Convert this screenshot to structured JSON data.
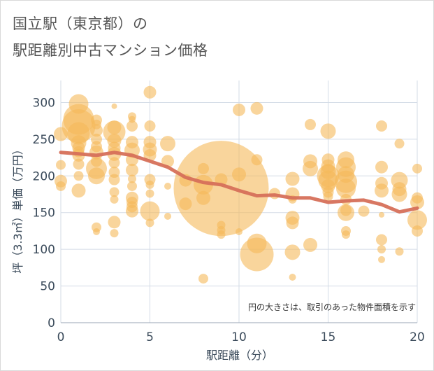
{
  "title_line1": "国立駅（東京都）の",
  "title_line2": "駅距離別中古マンション価格",
  "note": "円の大きさは、取引のあった物件面積を示す",
  "colors": {
    "bubble": "#f5b95a",
    "trend": "#d6705a",
    "grid": "#d3dbe6",
    "text": "#3a4a5a"
  },
  "chart_data": {
    "type": "scatter",
    "xlabel": "駅距離（分）",
    "ylabel": "坪（3.3㎡）単価（万円）",
    "xlim": [
      0,
      20
    ],
    "ylim": [
      0,
      330
    ],
    "xticks": [
      0,
      5,
      10,
      15,
      20
    ],
    "yticks": [
      0,
      50,
      100,
      150,
      200,
      250,
      300
    ],
    "grid": true,
    "points": [
      {
        "x": 0,
        "y": 257,
        "size": 10
      },
      {
        "x": 0,
        "y": 215,
        "size": 7
      },
      {
        "x": 0,
        "y": 193,
        "size": 9
      },
      {
        "x": 0,
        "y": 186,
        "size": 7
      },
      {
        "x": 1,
        "y": 298,
        "size": 14
      },
      {
        "x": 1,
        "y": 277,
        "size": 22
      },
      {
        "x": 1,
        "y": 268,
        "size": 24
      },
      {
        "x": 1,
        "y": 258,
        "size": 16
      },
      {
        "x": 1,
        "y": 245,
        "size": 11
      },
      {
        "x": 1,
        "y": 238,
        "size": 9
      },
      {
        "x": 1,
        "y": 233,
        "size": 8
      },
      {
        "x": 1,
        "y": 228,
        "size": 9
      },
      {
        "x": 1,
        "y": 216,
        "size": 8
      },
      {
        "x": 1,
        "y": 200,
        "size": 7
      },
      {
        "x": 1,
        "y": 180,
        "size": 10
      },
      {
        "x": 2,
        "y": 276,
        "size": 8
      },
      {
        "x": 2,
        "y": 270,
        "size": 7
      },
      {
        "x": 2,
        "y": 262,
        "size": 9
      },
      {
        "x": 2,
        "y": 250,
        "size": 8
      },
      {
        "x": 2,
        "y": 240,
        "size": 8
      },
      {
        "x": 2,
        "y": 232,
        "size": 10
      },
      {
        "x": 2,
        "y": 220,
        "size": 8
      },
      {
        "x": 2,
        "y": 210,
        "size": 15
      },
      {
        "x": 2,
        "y": 200,
        "size": 12
      },
      {
        "x": 2,
        "y": 130,
        "size": 7
      },
      {
        "x": 2,
        "y": 124,
        "size": 5
      },
      {
        "x": 3,
        "y": 295,
        "size": 4
      },
      {
        "x": 3,
        "y": 266,
        "size": 10
      },
      {
        "x": 3,
        "y": 260,
        "size": 16
      },
      {
        "x": 3,
        "y": 248,
        "size": 10
      },
      {
        "x": 3,
        "y": 238,
        "size": 9
      },
      {
        "x": 3,
        "y": 230,
        "size": 10
      },
      {
        "x": 3,
        "y": 218,
        "size": 8
      },
      {
        "x": 3,
        "y": 205,
        "size": 8
      },
      {
        "x": 3,
        "y": 195,
        "size": 8
      },
      {
        "x": 3,
        "y": 178,
        "size": 7
      },
      {
        "x": 3,
        "y": 168,
        "size": 6
      },
      {
        "x": 3,
        "y": 137,
        "size": 9
      },
      {
        "x": 3,
        "y": 122,
        "size": 6
      },
      {
        "x": 4,
        "y": 281,
        "size": 6
      },
      {
        "x": 4,
        "y": 277,
        "size": 5
      },
      {
        "x": 4,
        "y": 268,
        "size": 8
      },
      {
        "x": 4,
        "y": 246,
        "size": 9
      },
      {
        "x": 4,
        "y": 235,
        "size": 11
      },
      {
        "x": 4,
        "y": 222,
        "size": 9
      },
      {
        "x": 4,
        "y": 208,
        "size": 9
      },
      {
        "x": 4,
        "y": 196,
        "size": 6
      },
      {
        "x": 4,
        "y": 186,
        "size": 7
      },
      {
        "x": 4,
        "y": 170,
        "size": 9
      },
      {
        "x": 4,
        "y": 164,
        "size": 8
      },
      {
        "x": 4,
        "y": 158,
        "size": 8
      },
      {
        "x": 4,
        "y": 152,
        "size": 9
      },
      {
        "x": 5,
        "y": 314,
        "size": 9
      },
      {
        "x": 5,
        "y": 268,
        "size": 8
      },
      {
        "x": 5,
        "y": 246,
        "size": 9
      },
      {
        "x": 5,
        "y": 236,
        "size": 10
      },
      {
        "x": 5,
        "y": 228,
        "size": 9
      },
      {
        "x": 5,
        "y": 195,
        "size": 8
      },
      {
        "x": 5,
        "y": 188,
        "size": 6
      },
      {
        "x": 5,
        "y": 176,
        "size": 6
      },
      {
        "x": 5,
        "y": 152,
        "size": 14
      },
      {
        "x": 5,
        "y": 136,
        "size": 6
      },
      {
        "x": 6,
        "y": 244,
        "size": 11
      },
      {
        "x": 6,
        "y": 220,
        "size": 9
      },
      {
        "x": 6,
        "y": 186,
        "size": 5
      },
      {
        "x": 6,
        "y": 145,
        "size": 5
      },
      {
        "x": 7,
        "y": 194,
        "size": 9
      },
      {
        "x": 7,
        "y": 162,
        "size": 9
      },
      {
        "x": 8,
        "y": 210,
        "size": 8
      },
      {
        "x": 8,
        "y": 188,
        "size": 14
      },
      {
        "x": 8,
        "y": 170,
        "size": 10
      },
      {
        "x": 8,
        "y": 60,
        "size": 7
      },
      {
        "x": 9,
        "y": 183,
        "size": 68
      },
      {
        "x": 9,
        "y": 195,
        "size": 9
      },
      {
        "x": 9,
        "y": 133,
        "size": 6
      },
      {
        "x": 9,
        "y": 126,
        "size": 6
      },
      {
        "x": 9,
        "y": 120,
        "size": 6
      },
      {
        "x": 10,
        "y": 290,
        "size": 9
      },
      {
        "x": 10,
        "y": 202,
        "size": 10
      },
      {
        "x": 10,
        "y": 124,
        "size": 5
      },
      {
        "x": 11,
        "y": 292,
        "size": 9
      },
      {
        "x": 11,
        "y": 222,
        "size": 8
      },
      {
        "x": 11,
        "y": 108,
        "size": 14
      },
      {
        "x": 11,
        "y": 93,
        "size": 24
      },
      {
        "x": 12,
        "y": 176,
        "size": 8
      },
      {
        "x": 13,
        "y": 196,
        "size": 10
      },
      {
        "x": 13,
        "y": 175,
        "size": 10
      },
      {
        "x": 13,
        "y": 168,
        "size": 6
      },
      {
        "x": 13,
        "y": 143,
        "size": 10
      },
      {
        "x": 13,
        "y": 136,
        "size": 9
      },
      {
        "x": 13,
        "y": 96,
        "size": 11
      },
      {
        "x": 13,
        "y": 62,
        "size": 5
      },
      {
        "x": 14,
        "y": 270,
        "size": 8
      },
      {
        "x": 14,
        "y": 220,
        "size": 10
      },
      {
        "x": 14,
        "y": 210,
        "size": 11
      },
      {
        "x": 14,
        "y": 106,
        "size": 10
      },
      {
        "x": 15,
        "y": 261,
        "size": 11
      },
      {
        "x": 15,
        "y": 222,
        "size": 9
      },
      {
        "x": 15,
        "y": 213,
        "size": 10
      },
      {
        "x": 15,
        "y": 206,
        "size": 11
      },
      {
        "x": 15,
        "y": 200,
        "size": 16
      },
      {
        "x": 15,
        "y": 194,
        "size": 14
      },
      {
        "x": 15,
        "y": 186,
        "size": 10
      },
      {
        "x": 15,
        "y": 178,
        "size": 8
      },
      {
        "x": 15,
        "y": 172,
        "size": 7
      },
      {
        "x": 16,
        "y": 222,
        "size": 12
      },
      {
        "x": 16,
        "y": 212,
        "size": 14
      },
      {
        "x": 16,
        "y": 202,
        "size": 12
      },
      {
        "x": 16,
        "y": 192,
        "size": 16
      },
      {
        "x": 16,
        "y": 183,
        "size": 14
      },
      {
        "x": 16,
        "y": 168,
        "size": 8
      },
      {
        "x": 16,
        "y": 153,
        "size": 8
      },
      {
        "x": 16,
        "y": 150,
        "size": 12
      },
      {
        "x": 16,
        "y": 125,
        "size": 7
      },
      {
        "x": 16,
        "y": 120,
        "size": 6
      },
      {
        "x": 17,
        "y": 152,
        "size": 8
      },
      {
        "x": 18,
        "y": 268,
        "size": 8
      },
      {
        "x": 18,
        "y": 212,
        "size": 9
      },
      {
        "x": 18,
        "y": 190,
        "size": 9
      },
      {
        "x": 18,
        "y": 180,
        "size": 10
      },
      {
        "x": 18,
        "y": 147,
        "size": 4
      },
      {
        "x": 18,
        "y": 113,
        "size": 8
      },
      {
        "x": 18,
        "y": 100,
        "size": 6
      },
      {
        "x": 18,
        "y": 86,
        "size": 5
      },
      {
        "x": 19,
        "y": 244,
        "size": 7
      },
      {
        "x": 19,
        "y": 194,
        "size": 12
      },
      {
        "x": 19,
        "y": 182,
        "size": 10
      },
      {
        "x": 19,
        "y": 175,
        "size": 11
      },
      {
        "x": 19,
        "y": 97,
        "size": 6
      },
      {
        "x": 20,
        "y": 210,
        "size": 7
      },
      {
        "x": 20,
        "y": 170,
        "size": 8
      },
      {
        "x": 20,
        "y": 164,
        "size": 10
      },
      {
        "x": 20,
        "y": 140,
        "size": 14
      },
      {
        "x": 20,
        "y": 125,
        "size": 8
      }
    ],
    "trend": {
      "x": [
        0,
        1,
        2,
        3,
        4,
        5,
        6,
        7,
        8,
        9,
        10,
        11,
        12,
        13,
        14,
        15,
        16,
        17,
        18,
        19,
        20
      ],
      "y": [
        232,
        230,
        228,
        232,
        228,
        220,
        212,
        198,
        191,
        188,
        180,
        173,
        174,
        170,
        170,
        164,
        166,
        167,
        161,
        151,
        156
      ]
    }
  }
}
